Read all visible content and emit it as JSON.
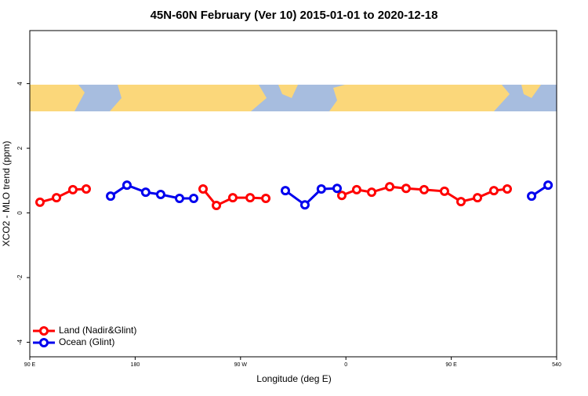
{
  "chart_data": {
    "type": "line",
    "title": "45N-60N February (Ver 10)   2015-01-01 to 2020-12-18",
    "x_label": "Longitude (deg E)",
    "y_label": "XCO2 - MLO trend (ppm)",
    "xlim": [
      90,
      540
    ],
    "xticks": [
      {
        "value": 90,
        "label": "90 E"
      },
      180,
      {
        "value": 270,
        "label": "90 W"
      },
      {
        "value": 360,
        "label": "0"
      },
      {
        "value": 450,
        "label": "90 E"
      },
      540
    ],
    "ylim": [
      -4.45,
      5.64
    ],
    "yticks": [
      -4,
      -2,
      0,
      2,
      4
    ],
    "legend": "bottom-left",
    "series": [
      {
        "name": "Land (Nadir&Glint)",
        "color": "#ff0000",
        "x": [
          98.7,
          112.8,
          126.8,
          138.2,
          null,
          238,
          249.4,
          263.4,
          278.2,
          291.6,
          null,
          356.5,
          369.2,
          382,
          397.4,
          411.4,
          426.8,
          444.2,
          458.3,
          472.4,
          486.4,
          497.8
        ],
        "values": [
          0.33,
          0.47,
          0.72,
          0.74,
          null,
          0.74,
          0.23,
          0.47,
          0.47,
          0.45,
          null,
          0.54,
          0.72,
          0.64,
          0.81,
          0.76,
          0.72,
          0.67,
          0.35,
          0.47,
          0.69,
          0.74
        ]
      },
      {
        "name": "Ocean (Glint)",
        "color": "#0000ee",
        "x": [
          159,
          173,
          189,
          201.8,
          217.9,
          230,
          null,
          308.3,
          325,
          339,
          352.5,
          null,
          518.6,
          532.7
        ],
        "values": [
          0.52,
          0.86,
          0.64,
          0.57,
          0.45,
          0.45,
          null,
          0.69,
          0.25,
          0.74,
          0.76,
          null,
          0.52,
          0.86
        ]
      }
    ]
  }
}
